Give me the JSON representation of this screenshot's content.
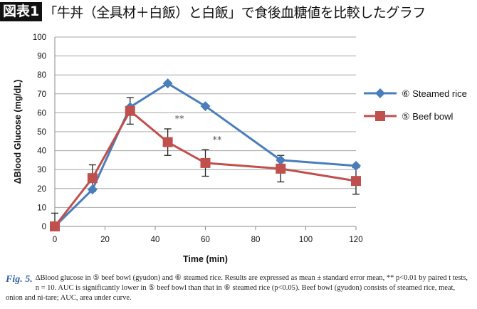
{
  "header": {
    "badge": "図表1",
    "title": "「牛丼（全具材＋白飯）と白飯」で食後血糖値を比較したグラフ"
  },
  "chart_data": {
    "type": "line",
    "xlabel": "Time (min)",
    "ylabel": "ΔBlood Glucose (mg/dL)",
    "xlim": [
      0,
      120
    ],
    "ylim": [
      0,
      100
    ],
    "xticks": [
      0,
      20,
      40,
      60,
      80,
      100,
      120
    ],
    "yticks": [
      0,
      10,
      20,
      30,
      40,
      50,
      60,
      70,
      80,
      90,
      100
    ],
    "grid": "horizontal",
    "legend": "right",
    "x": [
      0,
      15,
      30,
      45,
      60,
      90,
      120
    ],
    "series": [
      {
        "name": "⑥ Steamed rice",
        "color": "#4a7ebb",
        "marker": "diamond",
        "values": [
          0,
          19.5,
          63,
          75.5,
          63.5,
          35,
          32
        ]
      },
      {
        "name": "⑤ Beef bowl",
        "color": "#c0504d",
        "marker": "square",
        "values": [
          0,
          25.5,
          61,
          44.5,
          33.5,
          30.5,
          24
        ],
        "error": [
          7,
          7,
          7,
          7,
          7,
          7,
          7
        ]
      }
    ],
    "annotations": [
      {
        "x": 45,
        "y": 55,
        "text": "**"
      },
      {
        "x": 60,
        "y": 44,
        "text": "**"
      }
    ]
  },
  "caption": {
    "label": "Fig. 5.",
    "text": "ΔBlood glucose in ⑤ beef bowl (gyudon) and ⑥ steamed rice. Results are expressed as mean ± standard error mean, ** p<0.01 by paired t tests, n = 10. AUC is significantly lower in ⑤ beef bowl than that in ⑥ steamed rice (p<0.05). Beef bowl (gyudon) consists of steamed rice, meat, onion and ni-tare; AUC, area under curve."
  }
}
